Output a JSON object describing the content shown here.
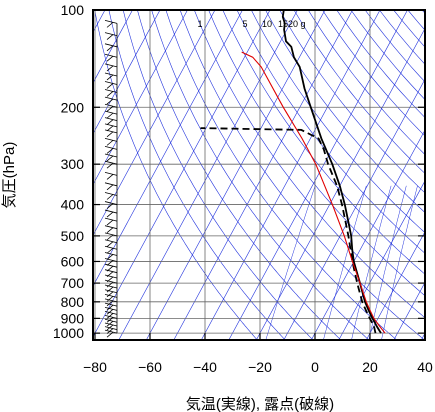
{
  "chart_data": {
    "type": "line",
    "subtype": "skew-T log-p thermodynamic diagram",
    "title": "",
    "xlabel": "気温(実線), 露点(破線)",
    "ylabel": "気圧(hPa)",
    "xlim": [
      -80,
      40
    ],
    "ylim": [
      1050,
      100
    ],
    "y_scale": "log",
    "x_ticks": [
      -80,
      -60,
      -40,
      -20,
      0,
      20,
      40
    ],
    "x_tick_labels": [
      "−80",
      "−60",
      "−40",
      "−20",
      "0",
      "20",
      "40"
    ],
    "y_ticks": [
      100,
      200,
      300,
      400,
      500,
      600,
      700,
      800,
      900,
      1000
    ],
    "y_tick_labels": [
      "100",
      "200",
      "300",
      "400",
      "500",
      "600",
      "700",
      "800",
      "900",
      "1000"
    ],
    "grid": true,
    "mixing_ratio_labels": [
      "1",
      "5",
      "10",
      "15",
      "20",
      "g"
    ],
    "colors": {
      "temperature": "#000000",
      "dewpoint": "#000000",
      "parcel": "#e00000",
      "guide_lines": "#2233dd",
      "grid": "#666666",
      "wind_barbs": "#000000"
    },
    "series": [
      {
        "role": "temperature",
        "style": "solid",
        "points": [
          {
            "p": 1000,
            "t": 24
          },
          {
            "p": 975,
            "t": 22.5
          },
          {
            "p": 950,
            "t": 21
          },
          {
            "p": 925,
            "t": 19.5
          },
          {
            "p": 900,
            "t": 18
          },
          {
            "p": 850,
            "t": 15
          },
          {
            "p": 800,
            "t": 12
          },
          {
            "p": 700,
            "t": 6.5
          },
          {
            "p": 600,
            "t": 0
          },
          {
            "p": 550,
            "t": -3
          },
          {
            "p": 500,
            "t": -6
          },
          {
            "p": 450,
            "t": -10
          },
          {
            "p": 400,
            "t": -14.5
          },
          {
            "p": 350,
            "t": -20
          },
          {
            "p": 300,
            "t": -27
          },
          {
            "p": 250,
            "t": -36
          },
          {
            "p": 200,
            "t": -46
          },
          {
            "p": 175,
            "t": -52
          },
          {
            "p": 150,
            "t": -58
          },
          {
            "p": 140,
            "t": -62
          },
          {
            "p": 130,
            "t": -65
          },
          {
            "p": 125,
            "t": -68
          },
          {
            "p": 115,
            "t": -71
          },
          {
            "p": 110,
            "t": -72
          },
          {
            "p": 105,
            "t": -74
          },
          {
            "p": 100,
            "t": -75
          }
        ]
      },
      {
        "role": "dewpoint",
        "style": "dashed",
        "points": [
          {
            "p": 1000,
            "t": 22
          },
          {
            "p": 950,
            "t": 20
          },
          {
            "p": 900,
            "t": 17
          },
          {
            "p": 850,
            "t": 14
          },
          {
            "p": 800,
            "t": 11
          },
          {
            "p": 700,
            "t": 5.5
          },
          {
            "p": 600,
            "t": -0.5
          },
          {
            "p": 500,
            "t": -7
          },
          {
            "p": 450,
            "t": -11
          },
          {
            "p": 400,
            "t": -15.5
          },
          {
            "p": 350,
            "t": -21
          },
          {
            "p": 300,
            "t": -28.5
          },
          {
            "p": 270,
            "t": -33
          },
          {
            "p": 250,
            "t": -37
          },
          {
            "p": 235,
            "t": -45
          },
          {
            "p": 232,
            "t": -82
          }
        ]
      },
      {
        "role": "parcel",
        "style": "solid",
        "points": [
          {
            "p": 1000,
            "t": 25.5
          },
          {
            "p": 950,
            "t": 22
          },
          {
            "p": 900,
            "t": 18.5
          },
          {
            "p": 850,
            "t": 15.5
          },
          {
            "p": 800,
            "t": 12.5
          },
          {
            "p": 700,
            "t": 6.5
          },
          {
            "p": 600,
            "t": -0.5
          },
          {
            "p": 500,
            "t": -8.5
          },
          {
            "p": 400,
            "t": -19
          },
          {
            "p": 300,
            "t": -33
          },
          {
            "p": 250,
            "t": -43
          },
          {
            "p": 200,
            "t": -56
          },
          {
            "p": 150,
            "t": -72
          },
          {
            "p": 140,
            "t": -77
          },
          {
            "p": 135,
            "t": -82
          }
        ]
      }
    ],
    "wind_barbs": {
      "x_position_temperature": -72,
      "pressures": [
        1000,
        975,
        950,
        925,
        900,
        875,
        850,
        825,
        800,
        775,
        750,
        725,
        700,
        675,
        650,
        625,
        600,
        575,
        550,
        525,
        500,
        475,
        450,
        425,
        400,
        375,
        350,
        325,
        300,
        285,
        270,
        255,
        240,
        230,
        220,
        210,
        200,
        190,
        180,
        170,
        160,
        150,
        140,
        130,
        120,
        110
      ]
    }
  }
}
